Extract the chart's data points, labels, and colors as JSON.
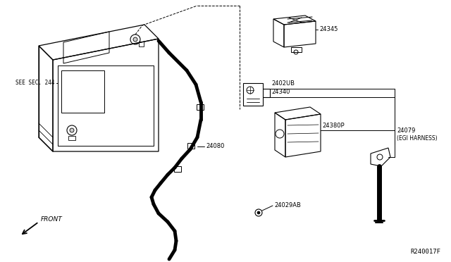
{
  "background_color": "#ffffff",
  "line_color": "#000000",
  "gray_color": "#888888",
  "labels": {
    "see_sec": "SEE SEC. 244",
    "front": "FRONT",
    "part_24345": "24345",
    "part_2402UB": "2402UB",
    "part_24340": "24340",
    "part_24380P": "24380P",
    "part_24079": "24079",
    "part_egi": "(EGI HARNESS)",
    "part_24080": "24080",
    "part_24029AB": "24029AB",
    "ref_code": "R240017F"
  },
  "figsize": [
    6.4,
    3.72
  ],
  "dpi": 100
}
